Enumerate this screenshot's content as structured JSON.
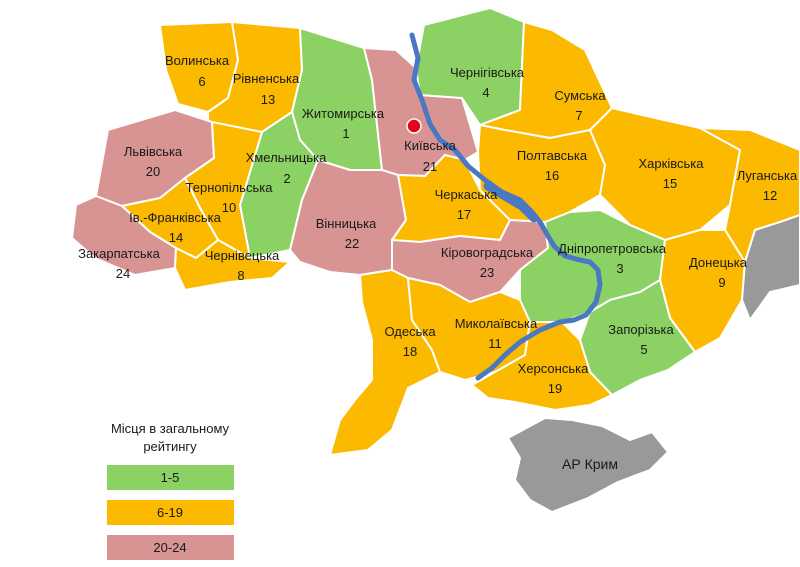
{
  "colors": {
    "green": "#8cd163",
    "orange": "#fbb900",
    "pink": "#d89393",
    "gray": "#999999",
    "river": "#4a78c2",
    "capital": "#e8001c"
  },
  "regions": [
    {
      "id": "volynska",
      "name": "Волинська",
      "rank": "6",
      "group": "orange"
    },
    {
      "id": "rivnenska",
      "name": "Рівненська",
      "rank": "13",
      "group": "orange"
    },
    {
      "id": "zhytomyrska",
      "name": "Житомирська",
      "rank": "1",
      "group": "green"
    },
    {
      "id": "kyivska",
      "name": "Київська",
      "rank": "21",
      "group": "pink"
    },
    {
      "id": "chernihivska",
      "name": "Чернігівська",
      "rank": "4",
      "group": "green"
    },
    {
      "id": "sumska",
      "name": "Сумська",
      "rank": "7",
      "group": "orange"
    },
    {
      "id": "lvivska",
      "name": "Львівська",
      "rank": "20",
      "group": "pink"
    },
    {
      "id": "khmelnytska",
      "name": "Хмельницька",
      "rank": "2",
      "group": "green"
    },
    {
      "id": "ternopilska",
      "name": "Тернопільська",
      "rank": "10",
      "group": "orange"
    },
    {
      "id": "ivfrankivska",
      "name": "Ів.-Франківська",
      "rank": "14",
      "group": "orange"
    },
    {
      "id": "zakarpatska",
      "name": "Закарпатська",
      "rank": "24",
      "group": "pink"
    },
    {
      "id": "chernivetska",
      "name": "Чернівецька",
      "rank": "8",
      "group": "orange"
    },
    {
      "id": "vinnytska",
      "name": "Вінницька",
      "rank": "22",
      "group": "pink"
    },
    {
      "id": "cherkaska",
      "name": "Черкаська",
      "rank": "17",
      "group": "orange"
    },
    {
      "id": "poltavska",
      "name": "Полтавська",
      "rank": "16",
      "group": "orange"
    },
    {
      "id": "kharkivska",
      "name": "Харківська",
      "rank": "15",
      "group": "orange"
    },
    {
      "id": "luhanska",
      "name": "Луганська",
      "rank": "12",
      "group": "orange"
    },
    {
      "id": "kirovohradska",
      "name": "Кіровоградська",
      "rank": "23",
      "group": "pink"
    },
    {
      "id": "dnipropetrovska",
      "name": "Дніпропетровська",
      "rank": "3",
      "group": "green"
    },
    {
      "id": "donetska",
      "name": "Донецька",
      "rank": "9",
      "group": "orange"
    },
    {
      "id": "odeska",
      "name": "Одеська",
      "rank": "18",
      "group": "orange"
    },
    {
      "id": "mykolaivska",
      "name": "Миколаївська",
      "rank": "11",
      "group": "orange"
    },
    {
      "id": "zaporizka",
      "name": "Запорізька",
      "rank": "5",
      "group": "green"
    },
    {
      "id": "khersonska",
      "name": "Херсонська",
      "rank": "19",
      "group": "orange"
    },
    {
      "id": "crimea",
      "name": "АР Крим",
      "rank": "",
      "group": "gray"
    }
  ],
  "legend": {
    "title_line1": "Місця в загальному",
    "title_line2": "рейтингу",
    "items": [
      {
        "label": "1-5",
        "group": "green"
      },
      {
        "label": "6-19",
        "group": "orange"
      },
      {
        "label": "20-24",
        "group": "pink"
      }
    ]
  }
}
